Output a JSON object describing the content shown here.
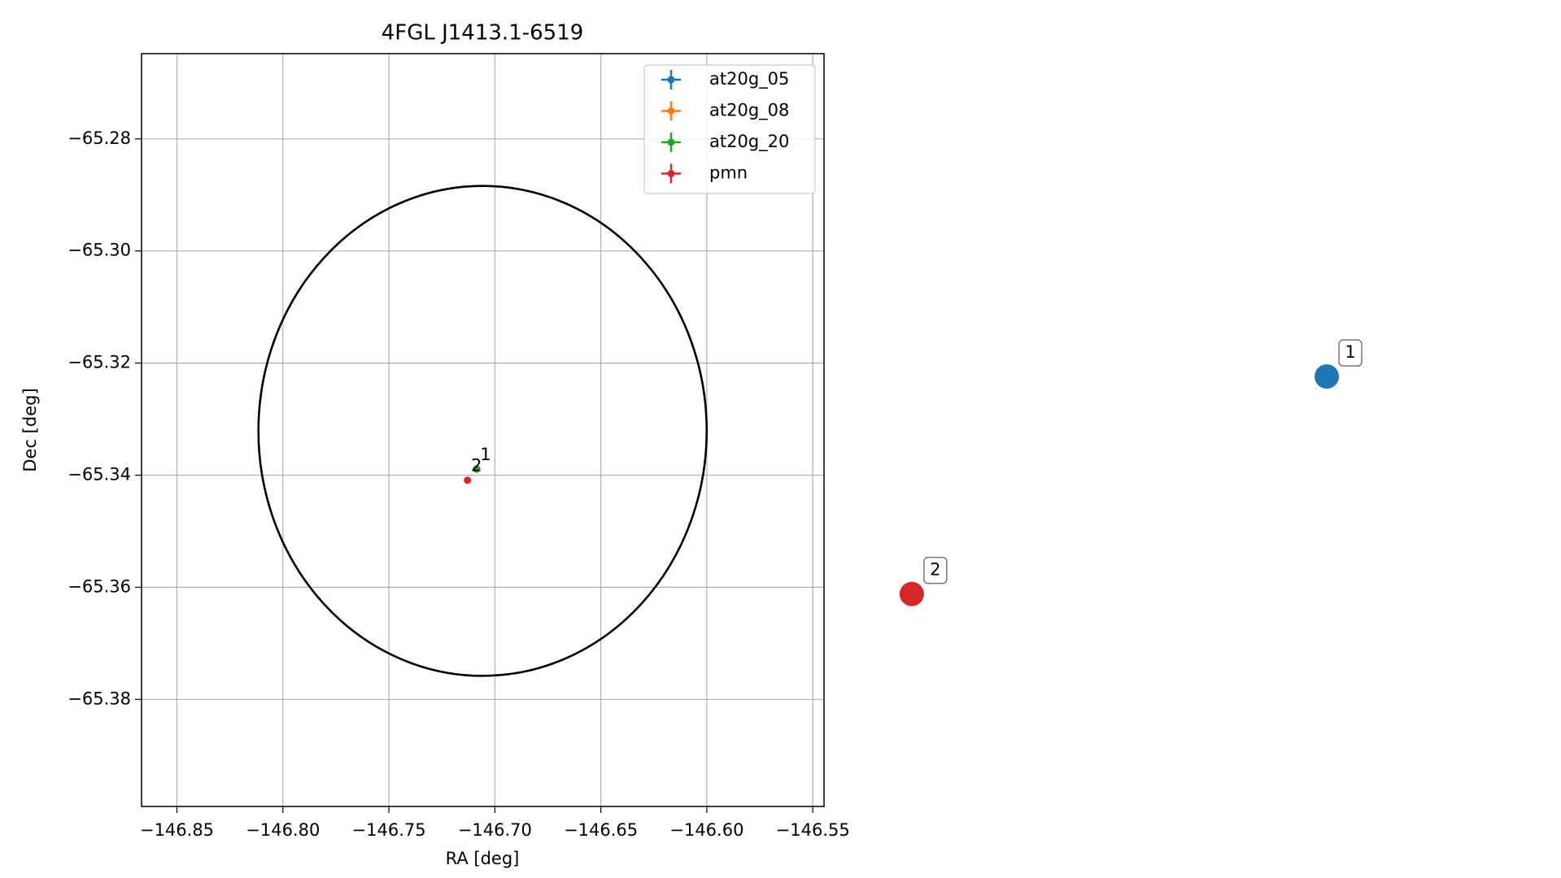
{
  "chart_data": {
    "type": "scatter",
    "title": "4FGL J1413.1-6519",
    "x_label": "RA [deg]",
    "y_label": "Dec [deg]",
    "xlim": [
      -146.8667,
      -146.5447
    ],
    "ylim": [
      -65.3991,
      -65.2648
    ],
    "xticks": [
      {
        "value": -146.85,
        "label": "−146.85"
      },
      {
        "value": -146.8,
        "label": "−146.80"
      },
      {
        "value": -146.75,
        "label": "−146.75"
      },
      {
        "value": -146.7,
        "label": "−146.70"
      },
      {
        "value": -146.65,
        "label": "−146.65"
      },
      {
        "value": -146.6,
        "label": "−146.60"
      },
      {
        "value": -146.55,
        "label": "−146.55"
      }
    ],
    "yticks": [
      {
        "value": -65.28,
        "label": "−65.28"
      },
      {
        "value": -65.3,
        "label": "−65.30"
      },
      {
        "value": -65.32,
        "label": "−65.32"
      },
      {
        "value": -65.34,
        "label": "−65.34"
      },
      {
        "value": -65.36,
        "label": "−65.36"
      },
      {
        "value": -65.38,
        "label": "−65.38"
      }
    ],
    "grid": true,
    "legend": "upper right",
    "series": [
      {
        "name": "at20g_05",
        "color": "#1f77b4",
        "x": [
          -146.7086
        ],
        "values": [
          -65.3389
        ]
      },
      {
        "name": "at20g_08",
        "color": "#ff7f0e",
        "x": [
          -146.7086
        ],
        "values": [
          -65.3389
        ]
      },
      {
        "name": "at20g_20",
        "color": "#2ca02c",
        "x": [
          -146.7086
        ],
        "values": [
          -65.3389
        ],
        "point_labels": [
          "1"
        ]
      },
      {
        "name": "pmn",
        "color": "#d62728",
        "x": [
          -146.7129
        ],
        "values": [
          -65.3409
        ],
        "point_labels": [
          "2"
        ]
      }
    ],
    "ellipse": {
      "center": [
        -146.7058,
        -65.3321
      ],
      "width": 0.2115,
      "height": 0.0874,
      "color": "#000000"
    },
    "highlighted": [
      {
        "label": "1",
        "color": "#1f77b4",
        "x": -146.3075,
        "y": -65.3224
      },
      {
        "label": "2",
        "color": "#d62728",
        "x": -146.5033,
        "y": -65.3612
      }
    ]
  }
}
